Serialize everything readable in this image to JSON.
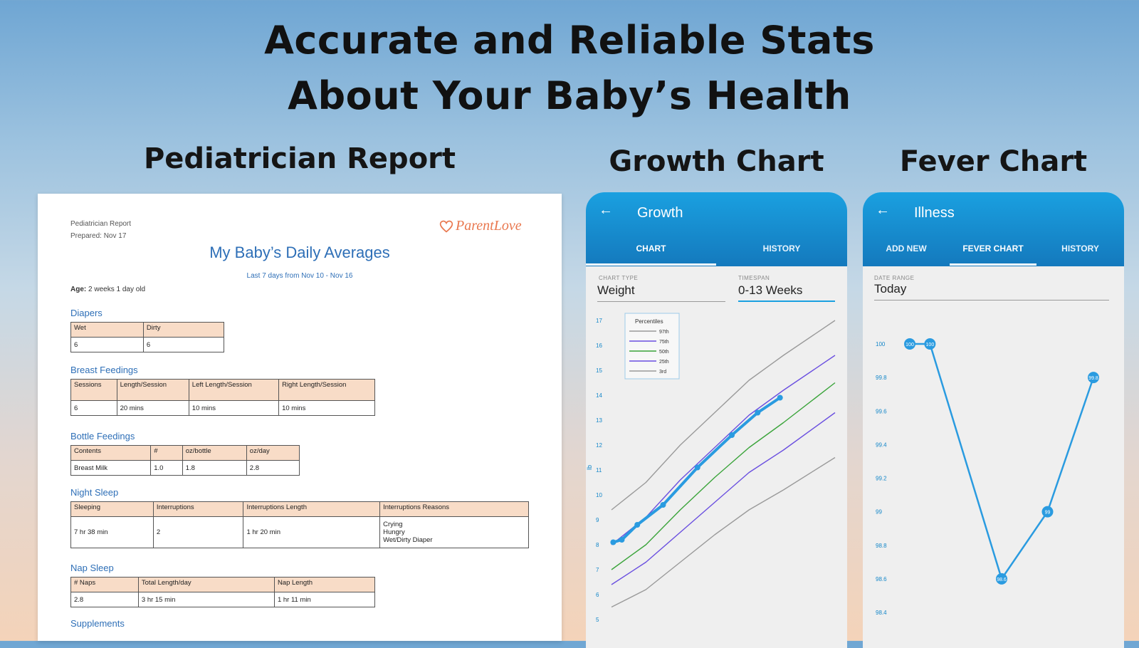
{
  "hero": {
    "line1": "Accurate and Reliable Stats",
    "line2": "About Your Baby’s Health"
  },
  "sections": {
    "report": "Pediatrician Report",
    "growth": "Growth Chart",
    "fever": "Fever Chart"
  },
  "report": {
    "meta_title": "Pediatrician Report",
    "meta_prepared": "Prepared: Nov 17",
    "logo": "ParentLove",
    "title": "My Baby’s Daily Averages",
    "subtitle": "Last 7 days from Nov 10 - Nov 16",
    "age_label": "Age:",
    "age_value": "2 weeks 1 day old",
    "diapers": {
      "heading": "Diapers",
      "headers": [
        "Wet",
        "Dirty"
      ],
      "row": [
        "6",
        "6"
      ]
    },
    "breast": {
      "heading": "Breast Feedings",
      "headers": [
        "Sessions",
        "Length/Session",
        "Left Length/Session",
        "Right Length/Session"
      ],
      "row": [
        "6",
        "20 mins",
        "10 mins",
        "10 mins"
      ]
    },
    "bottle": {
      "heading": "Bottle Feedings",
      "headers": [
        "Contents",
        "#",
        "oz/bottle",
        "oz/day"
      ],
      "row": [
        "Breast Milk",
        "1.0",
        "1.8",
        "2.8"
      ]
    },
    "night": {
      "heading": "Night Sleep",
      "headers": [
        "Sleeping",
        "Interruptions",
        "Interruptions Length",
        "Interruptions Reasons"
      ],
      "row": [
        "7 hr 38 min",
        "2",
        "1 hr 20 min",
        "Crying\nHungry\nWet/Dirty Diaper"
      ]
    },
    "nap": {
      "heading": "Nap Sleep",
      "headers": [
        "# Naps",
        "Total Length/day",
        "Nap Length"
      ],
      "row": [
        "2.8",
        "3 hr 15 min",
        "1 hr 11 min"
      ]
    },
    "supplements": {
      "heading": "Supplements"
    }
  },
  "growth_phone": {
    "title": "Growth",
    "tabs": [
      "CHART",
      "HISTORY"
    ],
    "chart_type_label": "CHART TYPE",
    "chart_type_value": "Weight",
    "timespan_label": "TIMESPAN",
    "timespan_value": "0-13 Weeks",
    "colors": {
      "bar": "#1487c9",
      "baby": "#2a9be0",
      "p97": "#9a9a9a",
      "p75": "#6a4fe0",
      "p50": "#3aa43a",
      "p25": "#6a4fe0",
      "p3": "#9a9a9a"
    }
  },
  "fever_phone": {
    "title": "Illness",
    "tabs": [
      "ADD NEW",
      "FEVER CHART",
      "HISTORY"
    ],
    "date_range_label": "DATE RANGE",
    "date_range_value": "Today",
    "line_color": "#2a9be0"
  },
  "chart_data": [
    {
      "type": "line",
      "title": "",
      "ylabel": "lb",
      "yticks": [
        "5",
        "6",
        "7",
        "8",
        "9",
        "10",
        "11",
        "12",
        "13",
        "14",
        "15",
        "16",
        "17"
      ],
      "ylim": [
        5,
        17
      ],
      "xlim": [
        0,
        13
      ],
      "legend_title": "Percentiles",
      "legend": [
        "97th",
        "75th",
        "50th",
        "25th",
        "3rd"
      ],
      "legend_position": "top-left",
      "series": [
        {
          "name": "97th",
          "color": "#9a9a9a",
          "x": [
            0,
            2,
            4,
            6,
            8,
            10,
            13
          ],
          "y": [
            9.4,
            10.5,
            12.0,
            13.3,
            14.6,
            15.6,
            17.0
          ]
        },
        {
          "name": "75th",
          "color": "#6a4fe0",
          "x": [
            0,
            2,
            4,
            6,
            8,
            10,
            13
          ],
          "y": [
            8.0,
            9.1,
            10.6,
            11.9,
            13.2,
            14.2,
            15.6
          ]
        },
        {
          "name": "50th",
          "color": "#3aa43a",
          "x": [
            0,
            2,
            4,
            6,
            8,
            10,
            13
          ],
          "y": [
            7.0,
            8.0,
            9.4,
            10.7,
            11.9,
            12.9,
            14.5
          ]
        },
        {
          "name": "25th",
          "color": "#6a4fe0",
          "x": [
            0,
            2,
            4,
            6,
            8,
            10,
            13
          ],
          "y": [
            6.4,
            7.3,
            8.5,
            9.7,
            10.9,
            11.8,
            13.3
          ]
        },
        {
          "name": "3rd",
          "color": "#9a9a9a",
          "x": [
            0,
            2,
            4,
            6,
            8,
            10,
            13
          ],
          "y": [
            5.5,
            6.2,
            7.3,
            8.4,
            9.4,
            10.2,
            11.5
          ]
        },
        {
          "name": "",
          "color": "#2a9be0",
          "x": [
            0.1,
            0.6,
            1.5,
            3.0,
            5.0,
            7.0,
            8.5,
            9.8
          ],
          "y": [
            8.1,
            8.2,
            8.8,
            9.6,
            11.1,
            12.4,
            13.3,
            13.9
          ]
        }
      ]
    },
    {
      "type": "line",
      "title": "",
      "yticks": [
        "98.4",
        "98.6",
        "98.8",
        "99",
        "99.2",
        "99.4",
        "99.6",
        "99.8",
        "100"
      ],
      "ylim": [
        98.4,
        100
      ],
      "series": [
        {
          "name": "",
          "color": "#2a9be0",
          "x": [
            0,
            0.22,
            1,
            1.5,
            2
          ],
          "y": [
            100.0,
            100.0,
            98.6,
            99.0,
            99.8
          ],
          "labels": [
            "100",
            "100",
            "98.6",
            "99",
            "99.8"
          ]
        }
      ]
    }
  ]
}
